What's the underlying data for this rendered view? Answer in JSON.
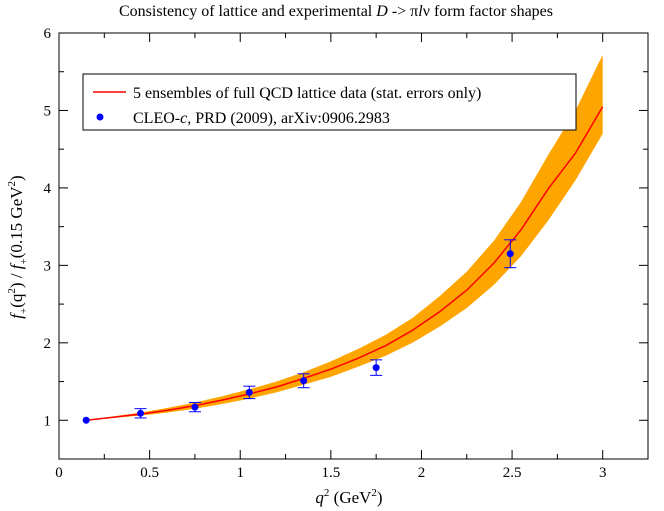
{
  "chart_data": {
    "type": "scatter",
    "title": {
      "prefix": "Consistency of lattice and experimental ",
      "d": "D",
      "arrow": " -> ",
      "pi": "π",
      "l": "l",
      "nu": "ν",
      "suffix": " form factor shapes"
    },
    "xlabel": {
      "q": "q",
      "sup": "2",
      "unit_pre": " (GeV",
      "unit_sup": "2",
      "unit_post": ")"
    },
    "ylabel": {
      "f1": "f",
      "sub1": "+",
      "open1": "(q",
      "sup1": "2",
      "mid": ") / ",
      "f2": "f",
      "sub2": "+",
      "tail": "(0.15 GeV",
      "sup2": "2",
      "close": ")"
    },
    "xlim": [
      0,
      3.25
    ],
    "ylim": [
      0.5,
      6
    ],
    "xticks": [
      0,
      0.5,
      1,
      1.5,
      2,
      2.5,
      3
    ],
    "xtick_labels": [
      "0",
      "0.5",
      "1",
      "1.5",
      "2",
      "2.5",
      "3"
    ],
    "yticks": [
      1,
      2,
      3,
      4,
      5,
      6
    ],
    "ytick_labels": [
      "1",
      "2",
      "3",
      "4",
      "5",
      "6"
    ],
    "band": {
      "name": "5 ensembles of full QCD lattice data (stat. errors only)",
      "color": "#ff0000",
      "fill_color": "#ffa500",
      "x": [
        0.15,
        0.3,
        0.45,
        0.6,
        0.75,
        0.9,
        1.05,
        1.2,
        1.35,
        1.5,
        1.65,
        1.8,
        1.95,
        2.1,
        2.25,
        2.4,
        2.55,
        2.7,
        2.85,
        3.0
      ],
      "y": [
        1.0,
        1.04,
        1.08,
        1.13,
        1.19,
        1.26,
        1.34,
        1.43,
        1.54,
        1.66,
        1.8,
        1.96,
        2.16,
        2.4,
        2.68,
        3.03,
        3.46,
        3.99,
        4.45,
        5.05
      ],
      "lower": [
        1.0,
        1.03,
        1.06,
        1.1,
        1.15,
        1.21,
        1.28,
        1.36,
        1.46,
        1.56,
        1.69,
        1.83,
        2.0,
        2.21,
        2.45,
        2.75,
        3.12,
        3.58,
        4.1,
        4.7
      ],
      "upper": [
        1.0,
        1.05,
        1.1,
        1.16,
        1.23,
        1.31,
        1.4,
        1.5,
        1.62,
        1.76,
        1.92,
        2.1,
        2.32,
        2.6,
        2.92,
        3.32,
        3.82,
        4.43,
        5.0,
        5.72
      ]
    },
    "points": {
      "name_prefix": "CLEO-",
      "name_italic": "c",
      "name_suffix": ", PRD (2009), arXiv:0906.2983",
      "color": "#0000ff",
      "x": [
        0.15,
        0.45,
        0.75,
        1.05,
        1.35,
        1.75,
        2.49
      ],
      "y": [
        1.0,
        1.09,
        1.17,
        1.36,
        1.51,
        1.68,
        3.15
      ],
      "err": [
        0.0,
        0.06,
        0.06,
        0.08,
        0.09,
        0.1,
        0.18
      ]
    },
    "legend_position": "top-left"
  }
}
